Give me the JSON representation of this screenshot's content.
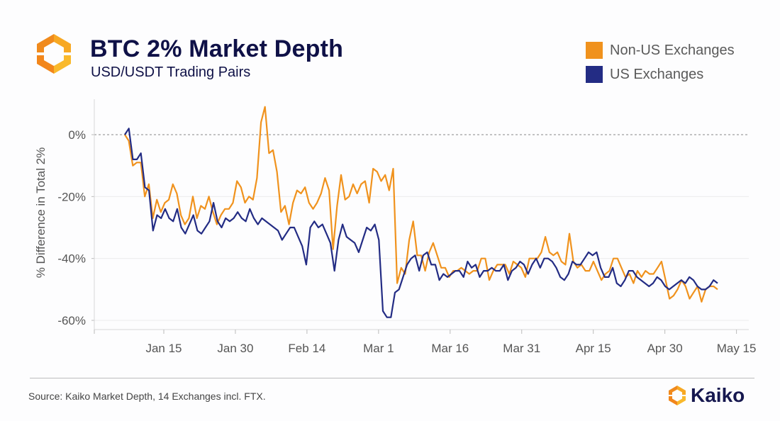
{
  "header": {
    "title": "BTC 2% Market Depth",
    "subtitle": "USD/USDT Trading Pairs",
    "logo_icon": "kaiko-hexagon-icon"
  },
  "legend": [
    {
      "label": "Non-US Exchanges",
      "color": "#f0921d"
    },
    {
      "label": "US Exchanges",
      "color": "#232c84"
    }
  ],
  "footer": {
    "source": "Source: Kaiko Market Depth, 14 Exchanges incl. FTX.",
    "brand": "Kaiko"
  },
  "chart_data": {
    "type": "line",
    "title": "BTC 2% Market Depth",
    "subtitle": "USD/USDT Trading Pairs",
    "xlabel": "",
    "ylabel": "% Difference in Total 2%",
    "ylim": [
      -62,
      10
    ],
    "yticks": [
      0,
      -20,
      -40,
      -60
    ],
    "ytick_labels": [
      "0%",
      "-20%",
      "-40%",
      "-60%"
    ],
    "xtick_labels": [
      "Jan 15",
      "Jan 30",
      "Feb 14",
      "Mar 1",
      "Mar 16",
      "Mar 31",
      "Apr 15",
      "Apr 30",
      "May 15"
    ],
    "xtick_day_offsets": [
      8,
      23,
      38,
      53,
      68,
      83,
      98,
      113,
      128
    ],
    "x_start": "Jan 7",
    "x_domain_days": [
      -6,
      131
    ],
    "reference_line": {
      "y": 0,
      "style": "dashed"
    },
    "grid": "horizontal",
    "legend_position": "top-right",
    "series": [
      {
        "name": "Non-US Exchanges",
        "color": "#f0921d",
        "values": [
          0,
          -2,
          -10,
          -9,
          -9,
          -20,
          -16,
          -27,
          -21,
          -25,
          -22,
          -21,
          -16,
          -19,
          -26,
          -29,
          -27,
          -20,
          -27,
          -23,
          -24,
          -20,
          -25,
          -29,
          -26,
          -24,
          -24,
          -22,
          -15,
          -17,
          -22,
          -20,
          -21,
          -14,
          4,
          9,
          -6,
          -5,
          -12,
          -25,
          -23,
          -29,
          -22,
          -18,
          -19,
          -17,
          -22,
          -24,
          -22,
          -19,
          -14,
          -18,
          -37,
          -23,
          -13,
          -21,
          -20,
          -16,
          -19,
          -16,
          -15,
          -22,
          -11,
          -12,
          -15,
          -13,
          -18,
          -11,
          -48,
          -43,
          -45,
          -34,
          -28,
          -39,
          -39,
          -44,
          -38,
          -35,
          -39,
          -43,
          -43,
          -46,
          -44,
          -44,
          -43,
          -44,
          -45,
          -44,
          -44,
          -40,
          -40,
          -47,
          -44,
          -42,
          -42,
          -42,
          -45,
          -41,
          -42,
          -43,
          -46,
          -40,
          -40,
          -40,
          -38,
          -33,
          -38,
          -39,
          -38,
          -41,
          -42,
          -32,
          -41,
          -43,
          -42,
          -44,
          -44,
          -41,
          -44,
          -47,
          -45,
          -44,
          -40,
          -40,
          -43,
          -46,
          -45,
          -48,
          -44,
          -46,
          -44,
          -45,
          -45,
          -43,
          -41,
          -47,
          -53,
          -52,
          -50,
          -47,
          -49,
          -53,
          -51,
          -49,
          -54,
          -50,
          -49,
          -49,
          -50
        ],
        "values_note": "Daily estimates read from chart; one value per day starting Jan 7"
      },
      {
        "name": "US Exchanges",
        "color": "#232c84",
        "values": [
          0,
          2,
          -8,
          -8,
          -6,
          -17,
          -18,
          -31,
          -26,
          -27,
          -24,
          -27,
          -28,
          -24,
          -30,
          -32,
          -29,
          -26,
          -31,
          -32,
          -30,
          -28,
          -22,
          -28,
          -30,
          -27,
          -28,
          -27,
          -25,
          -27,
          -28,
          -24,
          -27,
          -29,
          -27,
          -28,
          -29,
          -30,
          -31,
          -34,
          -32,
          -30,
          -30,
          -33,
          -36,
          -42,
          -30,
          -28,
          -30,
          -29,
          -32,
          -35,
          -44,
          -34,
          -29,
          -33,
          -34,
          -35,
          -38,
          -34,
          -30,
          -31,
          -29,
          -34,
          -57,
          -59,
          -59,
          -51,
          -50,
          -46,
          -42,
          -40,
          -39,
          -44,
          -39,
          -38,
          -42,
          -42,
          -47,
          -45,
          -46,
          -45,
          -44,
          -44,
          -46,
          -41,
          -43,
          -42,
          -46,
          -44,
          -44,
          -43,
          -44,
          -44,
          -42,
          -47,
          -44,
          -43,
          -41,
          -42,
          -45,
          -42,
          -40,
          -43,
          -40,
          -40,
          -41,
          -43,
          -46,
          -47,
          -45,
          -41,
          -42,
          -42,
          -40,
          -38,
          -39,
          -38,
          -43,
          -46,
          -46,
          -43,
          -48,
          -49,
          -47,
          -44,
          -44,
          -46,
          -47,
          -48,
          -49,
          -48,
          -46,
          -47,
          -49,
          -50,
          -49,
          -48,
          -47,
          -48,
          -46,
          -47,
          -49,
          -50,
          -50,
          -49,
          -47,
          -48
        ],
        "values_note": "Daily estimates read from chart; one value per day starting Jan 7"
      }
    ]
  }
}
